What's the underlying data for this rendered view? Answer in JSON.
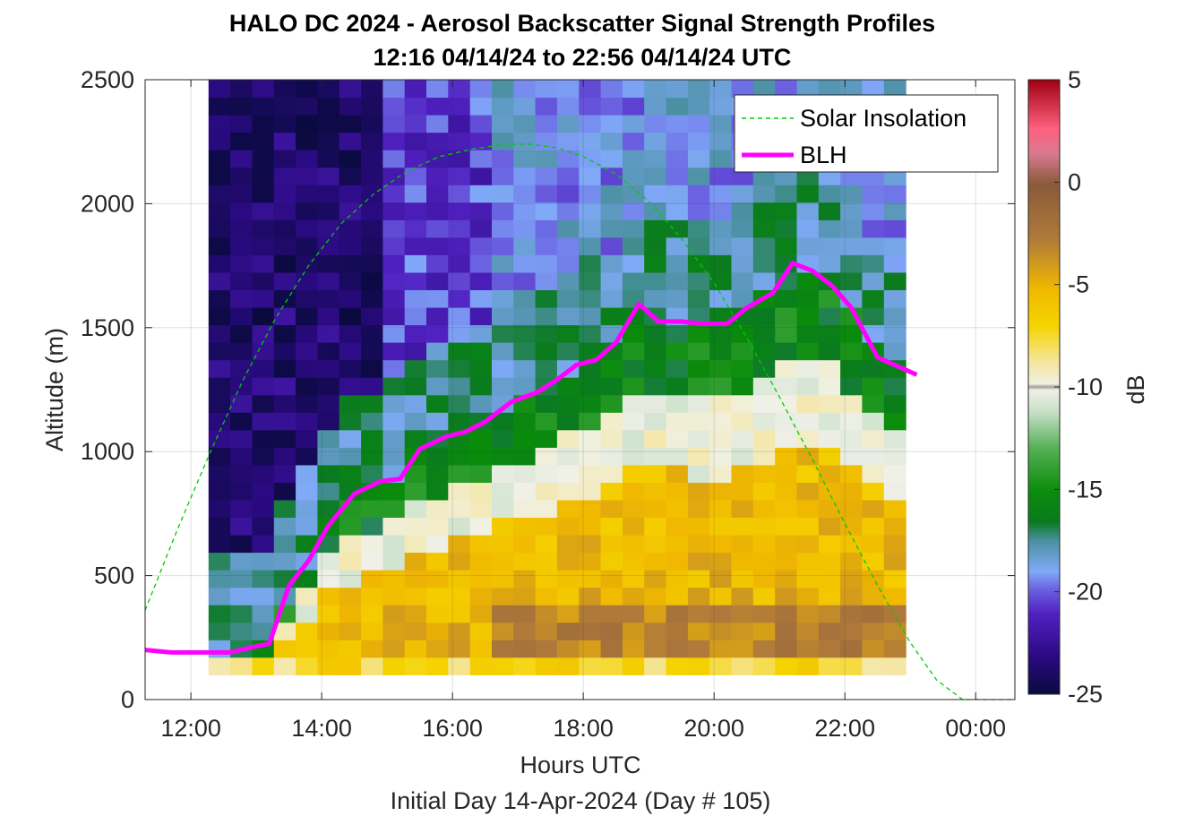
{
  "chart_data": {
    "type": "heatmap",
    "title": "HALO DC 2024 - Aerosol Backscatter Signal Strength Profiles",
    "subtitle": "12:16 04/14/24 to 22:56 04/14/24  UTC",
    "xlabel": "Hours UTC",
    "xlabel2": "Initial Day 14-Apr-2024 (Day # 105)",
    "ylabel": "Altitude (m)",
    "colorbar_label": "dB",
    "xlim": [
      11.3,
      24.6
    ],
    "ylim": [
      0,
      2500
    ],
    "x_ticks": [
      12,
      14,
      16,
      18,
      20,
      22,
      24
    ],
    "x_tick_labels": [
      "12:00",
      "14:00",
      "16:00",
      "18:00",
      "20:00",
      "22:00",
      "00:00"
    ],
    "y_ticks": [
      0,
      500,
      1000,
      1500,
      2000,
      2500
    ],
    "y_tick_labels": [
      "0",
      "500",
      "1000",
      "1500",
      "2000",
      "2500"
    ],
    "clim": [
      -25,
      5
    ],
    "colorbar_ticks": [
      5,
      0,
      -5,
      -10,
      -15,
      -20,
      -25
    ],
    "colorbar_tick_labels": [
      "5",
      "0",
      "-5",
      "-10",
      "-15",
      "-20",
      "-25"
    ],
    "grid": true,
    "legend_position": "top-right",
    "heatmap": {
      "time_range": [
        12.27,
        22.93
      ],
      "altitude_range": [
        100,
        2500
      ],
      "note_values": "dB"
    },
    "series": [
      {
        "name": "Solar Insolation",
        "style": "dashed",
        "color": "#00cc00",
        "x": [
          11.3,
          11.8,
          12.3,
          12.8,
          13.3,
          13.8,
          14.3,
          14.8,
          15.3,
          15.8,
          16.3,
          16.8,
          17.2,
          17.6,
          18.0,
          18.5,
          19.0,
          19.5,
          20.0,
          20.5,
          21.0,
          21.5,
          22.0,
          22.5,
          23.0,
          23.4,
          23.8,
          24.6
        ],
        "y": [
          360,
          690,
          1000,
          1290,
          1540,
          1750,
          1920,
          2040,
          2130,
          2190,
          2220,
          2240,
          2240,
          2225,
          2190,
          2120,
          2010,
          1860,
          1680,
          1460,
          1220,
          970,
          710,
          460,
          230,
          80,
          0,
          0
        ]
      },
      {
        "name": "BLH",
        "style": "solid",
        "color": "#ff00ff",
        "x": [
          11.3,
          11.7,
          12.2,
          12.6,
          13.0,
          13.2,
          13.5,
          13.8,
          14.1,
          14.5,
          14.9,
          15.2,
          15.5,
          15.9,
          16.2,
          16.5,
          16.9,
          17.3,
          17.6,
          17.9,
          18.2,
          18.5,
          18.85,
          19.15,
          19.5,
          19.8,
          20.2,
          20.5,
          20.9,
          21.2,
          21.5,
          21.8,
          22.1,
          22.5,
          22.8,
          23.1
        ],
        "y": [
          200,
          190,
          190,
          190,
          215,
          225,
          460,
          560,
          700,
          830,
          880,
          890,
          1010,
          1060,
          1080,
          1120,
          1200,
          1240,
          1290,
          1350,
          1370,
          1440,
          1595,
          1525,
          1525,
          1515,
          1515,
          1580,
          1640,
          1760,
          1730,
          1670,
          1580,
          1380,
          1345,
          1310
        ]
      }
    ]
  }
}
